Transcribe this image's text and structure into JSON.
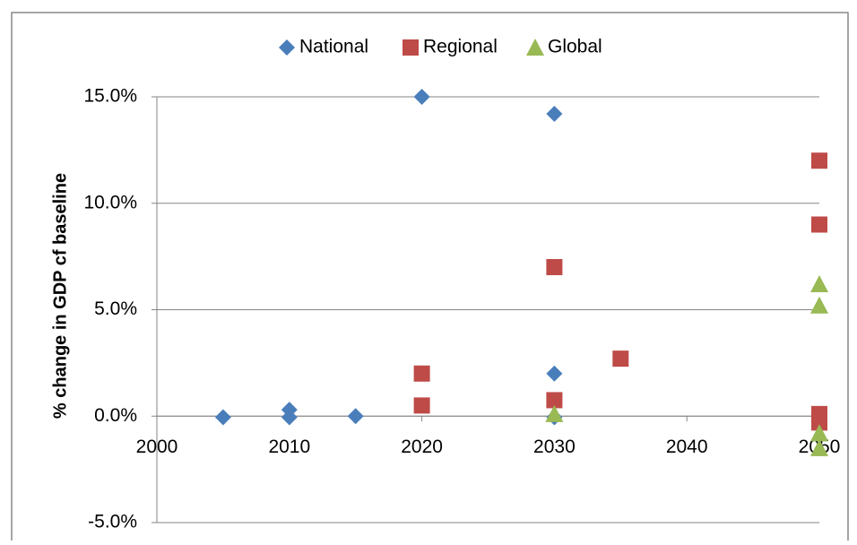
{
  "chart_data": {
    "type": "scatter",
    "y_axis_label": "% change in GDP cf baseline",
    "xlim": [
      2000,
      2050
    ],
    "xticks": [
      2000,
      2010,
      2020,
      2030,
      2040,
      2050
    ],
    "ylim": [
      -5,
      15
    ],
    "yticks": [
      {
        "value": -5,
        "label": "-5.0%"
      },
      {
        "value": 0,
        "label": "0.0%"
      },
      {
        "value": 5,
        "label": "5.0%"
      },
      {
        "value": 10,
        "label": "10.0%"
      },
      {
        "value": 15,
        "label": "15.0%"
      }
    ],
    "grid": true,
    "legend": "top",
    "series": [
      {
        "name": "National",
        "color": "#4a7ebb",
        "marker": "diamond",
        "x": [
          2005,
          2010,
          2010,
          2015,
          2020,
          2030,
          2030,
          2030
        ],
        "values": [
          -0.05,
          0.3,
          -0.05,
          0,
          15,
          14.2,
          2.0,
          -0.05
        ]
      },
      {
        "name": "Regional",
        "color": "#be4b48",
        "marker": "square",
        "x": [
          2020,
          2020,
          2030,
          2030,
          2035,
          2050,
          2050,
          2050,
          2050
        ],
        "values": [
          2.0,
          0.5,
          7.0,
          0.75,
          2.7,
          12.0,
          9.0,
          0.1,
          -0.3
        ]
      },
      {
        "name": "Global",
        "color": "#98b954",
        "marker": "triangle",
        "x": [
          2030,
          2050,
          2050,
          2050,
          2050
        ],
        "values": [
          0.1,
          6.2,
          5.2,
          -0.8,
          -1.5
        ]
      }
    ]
  }
}
